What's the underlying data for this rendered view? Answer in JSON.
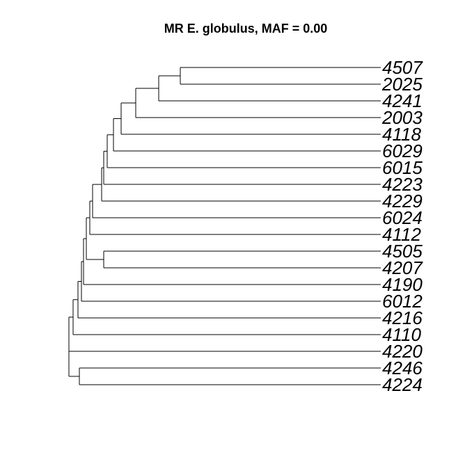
{
  "title": "MR E. globulus, MAF = 0.00",
  "leaves": [
    "4507",
    "2025",
    "4241",
    "2003",
    "4118",
    "6029",
    "6015",
    "4223",
    "4229",
    "6024",
    "4112",
    "4505",
    "4207",
    "4190",
    "6012",
    "4216",
    "4110",
    "4220",
    "4246",
    "4224"
  ],
  "tree": {
    "c": [
      {
        "c": [
          {
            "c": [
              {
                "c": [
                  {
                    "c": [
                      {
                        "c": [
                          {
                            "c": [
                              {
                                "c": [
                                  {
                                    "c": [
                                      {
                                        "c": [
                                          {
                                            "c": [
                                              {
                                                "c": [
                                                  {
                                                    "c": [
                                                      {
                                                        "c": [
                                                          {
                                                            "c": [
                                                              {
                                                                "c": [
                                                                  {
                                                                    "leaf": 0
                                                                  },
                                                                  {
                                                                    "leaf": 1
                                                                  }
                                                                ]
                                                              },
                                                              {
                                                                "leaf": 2
                                                              }
                                                            ]
                                                          },
                                                          {
                                                            "leaf": 3
                                                          }
                                                        ]
                                                      },
                                                      {
                                                        "leaf": 4
                                                      }
                                                    ]
                                                  },
                                                  {
                                                    "leaf": 5
                                                  }
                                                ]
                                              },
                                              {
                                                "leaf": 6
                                              }
                                            ]
                                          },
                                          {
                                            "leaf": 7
                                          }
                                        ]
                                      },
                                      {
                                        "leaf": 8
                                      }
                                    ]
                                  },
                                  {
                                    "leaf": 9
                                  }
                                ]
                              },
                              {
                                "leaf": 10
                              }
                            ]
                          },
                          {
                            "c": [
                              {
                                "leaf": 11
                              },
                              {
                                "leaf": 12
                              }
                            ]
                          }
                        ]
                      },
                      {
                        "leaf": 13
                      }
                    ]
                  },
                  {
                    "leaf": 14
                  }
                ]
              },
              {
                "leaf": 15
              }
            ]
          },
          {
            "leaf": 16
          }
        ]
      },
      {
        "leaf": 17
      }
    ]
  },
  "tree_right": {
    "c": [
      {
        "c": [
          {
            "c": [
              {
                "leaf": 18
              },
              {
                "leaf": 19
              }
            ]
          }
        ]
      }
    ]
  }
}
